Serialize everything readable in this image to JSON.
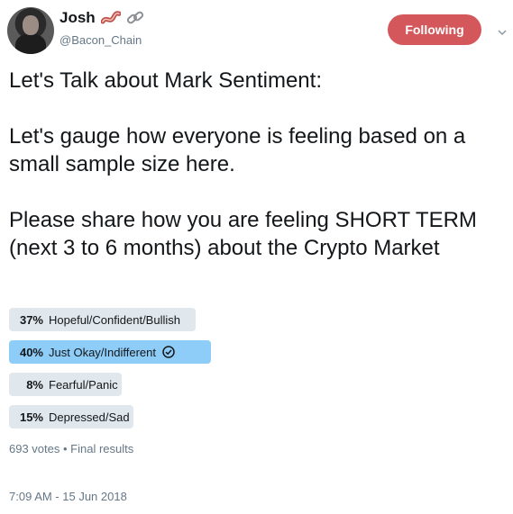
{
  "user": {
    "display_name": "Josh",
    "handle": "@Bacon_Chain",
    "emoji_icons": [
      "bacon-icon",
      "chain-link-icon"
    ]
  },
  "follow_button": {
    "label": "Following",
    "color": "#d4585b"
  },
  "tweet": {
    "text": "Let's Talk about Mark Sentiment:\n\nLet's gauge how everyone is feeling based on a small sample size here.\n\nPlease share how you are feeling SHORT TERM (next 3 to 6 months) about the Crypto Market"
  },
  "poll": {
    "options": [
      {
        "pct_label": "37%",
        "fraction": 0.37,
        "label": "Hopeful/Confident/Bullish",
        "winner": false
      },
      {
        "pct_label": "40%",
        "fraction": 0.4,
        "label": "Just Okay/Indifferent",
        "winner": true
      },
      {
        "pct_label": "8%",
        "fraction": 0.08,
        "label": "Fearful/Panic",
        "winner": false
      },
      {
        "pct_label": "15%",
        "fraction": 0.15,
        "label": "Depressed/Sad",
        "winner": false
      }
    ],
    "winner_color": "#8ecdf8",
    "bar_color": "#e1e8ed",
    "meta": "693 votes • Final results"
  },
  "timestamp": "7:09 AM - 15 Jun 2018"
}
